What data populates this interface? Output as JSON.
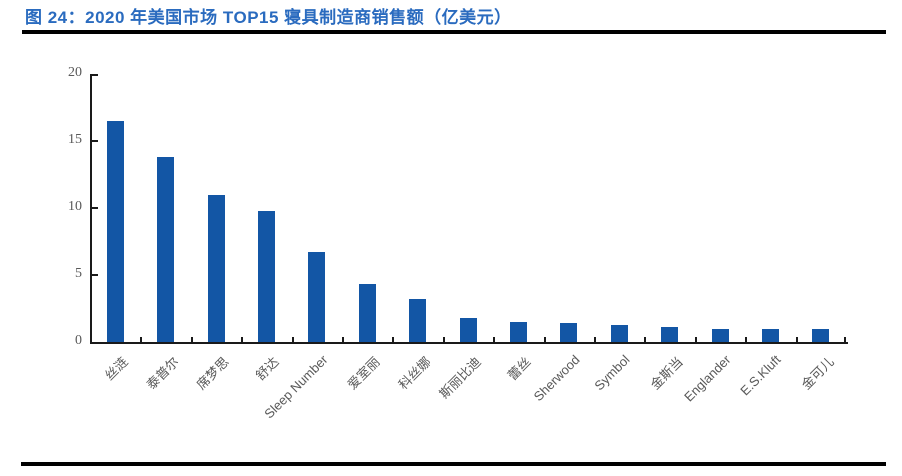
{
  "header": {
    "title": "图 24：2020 年美国市场 TOP15 寝具制造商销售额（亿美元）"
  },
  "chart_data": {
    "type": "bar",
    "title": "2020 年美国市场 TOP15 寝具制造商销售额（亿美元）",
    "categories": [
      "丝涟",
      "泰普尔",
      "席梦思",
      "舒达",
      "Sleep Number",
      "爱室丽",
      "科丝娜",
      "斯丽比迪",
      "蕾丝",
      "Sherwood",
      "Symbol",
      "金斯当",
      "Englander",
      "E.S.Kluft",
      "金可儿"
    ],
    "values": [
      16.5,
      13.8,
      11.0,
      9.8,
      6.7,
      4.3,
      3.2,
      1.8,
      1.5,
      1.4,
      1.3,
      1.1,
      1.0,
      1.0,
      0.95
    ],
    "xlabel": "",
    "ylabel": "",
    "ylim": [
      0,
      20
    ],
    "yticks": [
      0,
      5,
      10,
      15,
      20
    ],
    "grid": false,
    "legend_position": "none",
    "colors": {
      "bar": "#1356a5",
      "axis": "#1a1a1a",
      "tick_label": "#595959",
      "title": "#2a6bbf"
    }
  }
}
